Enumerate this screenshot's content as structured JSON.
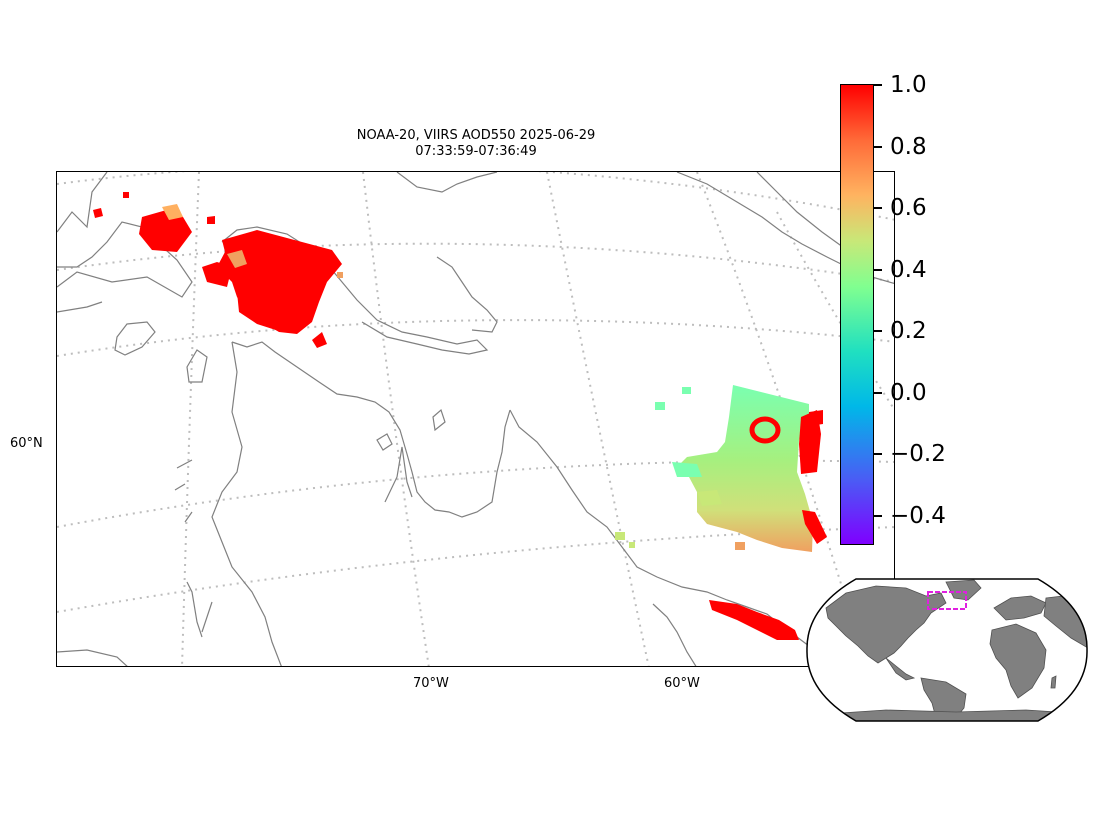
{
  "title": {
    "line1": "NOAA-20, VIIRS AOD550 2025-06-29",
    "line2": "07:33:59-07:36:49"
  },
  "axis_labels": {
    "lat_60": "60°N",
    "lon_70": "70°W",
    "lon_60": "60°W"
  },
  "colorbar": {
    "range": [
      -0.5,
      1.0
    ],
    "colormap": "rainbow",
    "ticks": [
      "1.0",
      "0.8",
      "0.6",
      "0.4",
      "0.2",
      "0.0",
      "−0.2",
      "−0.4"
    ]
  },
  "colors": {
    "coastline": "#808080",
    "gridline": "#bdbdbd",
    "inset_land": "#808080",
    "inset_extent_box": "#e020e0"
  }
}
